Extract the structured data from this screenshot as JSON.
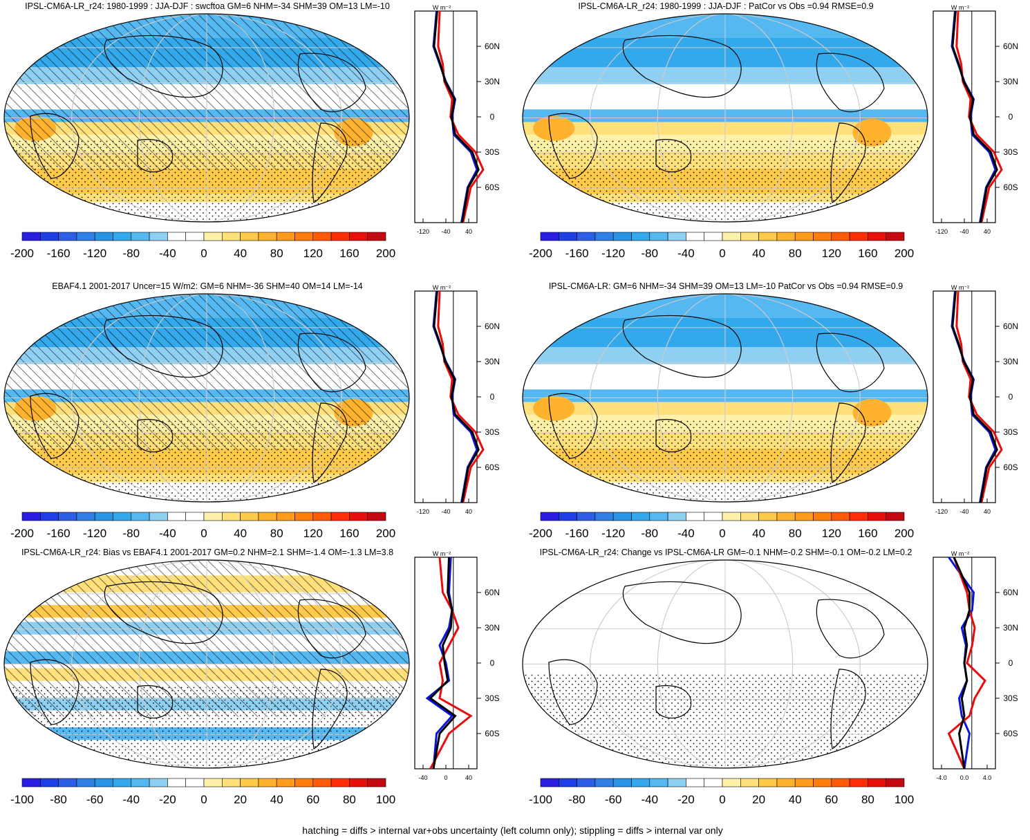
{
  "colors": {
    "scale": [
      "#2a1de0",
      "#1f3fe6",
      "#2c5fe6",
      "#2f7fe6",
      "#2a94e4",
      "#33a8ea",
      "#55b8f0",
      "#8fd0f2",
      "#ffffff",
      "#ffffff",
      "#fff2a8",
      "#ffe07a",
      "#ffc94a",
      "#ffb22e",
      "#ff9a1a",
      "#ff7d0d",
      "#ff5a08",
      "#ff2e06",
      "#e8100a",
      "#c40a10"
    ],
    "model_line": "#0a14e0",
    "obs_line": "#e80c0c",
    "mean_line": "#000000"
  },
  "panels": [
    {
      "title": "IPSL-CM6A-LR_r24: 1980-1999 : JJA-DJF : swcftoa GM=6 NHM=-34 SHM=39 OM=13 LM=-10",
      "cbar_labels": [
        "-200",
        "-160",
        "-120",
        "-80",
        "-40",
        "0",
        "40",
        "80",
        "120",
        "160",
        "200"
      ],
      "zonal_xticks": [
        "-120",
        "-40",
        "40"
      ],
      "zonal_unit": "W m⁻²",
      "lat_labels": [
        "60N",
        "30N",
        "0",
        "30S",
        "60S"
      ],
      "hatching": true
    },
    {
      "title": "IPSL-CM6A-LR_r24: 1980-1999 : JJA-DJF : PatCor vs Obs =0.94 RMSE=0.9",
      "cbar_labels": [
        "-200",
        "-160",
        "-120",
        "-80",
        "-40",
        "0",
        "40",
        "80",
        "120",
        "160",
        "200"
      ],
      "zonal_xticks": [
        "-120",
        "-40",
        "40"
      ],
      "zonal_unit": "W m⁻²",
      "lat_labels": [
        "60N",
        "30N",
        "0",
        "30S",
        "60S"
      ],
      "hatching": false
    },
    {
      "title": "EBAF4.1 2001-2017 Uncer=15 W/m2: GM=6 NHM=-36 SHM=40 OM=14 LM=-14",
      "cbar_labels": [
        "-200",
        "-160",
        "-120",
        "-80",
        "-40",
        "0",
        "40",
        "80",
        "120",
        "160",
        "200"
      ],
      "zonal_xticks": [
        "-120",
        "-40",
        "40"
      ],
      "zonal_unit": "W m⁻²",
      "lat_labels": [
        "60N",
        "30N",
        "0",
        "30S",
        "60S"
      ],
      "hatching": true
    },
    {
      "title": "IPSL-CM6A-LR: GM=6 NHM=-34 SHM=39 OM=13 LM=-10 PatCor vs Obs =0.94 RMSE=0.9",
      "cbar_labels": [
        "-200",
        "-160",
        "-120",
        "-80",
        "-40",
        "0",
        "40",
        "80",
        "120",
        "160",
        "200"
      ],
      "zonal_xticks": [
        "-120",
        "-40",
        "40"
      ],
      "zonal_unit": "W m⁻²",
      "lat_labels": [
        "60N",
        "30N",
        "0",
        "30S",
        "60S"
      ],
      "hatching": false
    },
    {
      "title": "IPSL-CM6A-LR_r24: Bias vs EBAF4.1 2001-2017 GM=0.2 NHM=2.1 SHM=-1.4 OM=-1.3 LM=3.8",
      "cbar_labels": [
        "-100",
        "-80",
        "-60",
        "-40",
        "-20",
        "0",
        "20",
        "40",
        "60",
        "80",
        "100"
      ],
      "zonal_xticks": [
        "-40",
        "0",
        "40"
      ],
      "zonal_unit": "W m⁻²",
      "lat_labels": [
        "60N",
        "30N",
        "0",
        "30S",
        "60S"
      ],
      "hatching": true
    },
    {
      "title": "IPSL-CM6A-LR_r24: Change vs IPSL-CM6A-LR GM=-0.1 NHM=-0.2 SHM=-0.1 OM=-0.2 LM=0.2",
      "cbar_labels": [
        "-100",
        "-80",
        "-60",
        "-40",
        "-20",
        "0",
        "20",
        "40",
        "60",
        "80",
        "100"
      ],
      "zonal_xticks": [
        "-4.0",
        "0.0",
        "4.0"
      ],
      "zonal_unit": "W m⁻²",
      "lat_labels": [
        "60N",
        "30N",
        "0",
        "30S",
        "60S"
      ],
      "hatching": false
    }
  ],
  "footnote": "hatching = diffs > internal var+obs uncertainty (left column only); stippling = diffs > internal var only",
  "chart_data": [
    {
      "type": "heatmap",
      "title": "IPSL-CM6A-LR_r24: 1980-1999 : JJA-DJF : swcftoa GM=6 NHM=-34 SHM=39 OM=13 LM=-10",
      "colorbar_range": [
        -200,
        200
      ],
      "zonal_lat": [
        -90,
        -60,
        -45,
        -30,
        -15,
        0,
        15,
        30,
        45,
        60,
        90
      ],
      "zonal_series": [
        {
          "values": [
            10,
            30,
            60,
            40,
            -15,
            -20,
            -10,
            -40,
            -60,
            -80,
            -70
          ]
        },
        {
          "values": [
            15,
            40,
            80,
            55,
            0,
            -25,
            -20,
            -45,
            -50,
            -65,
            -60
          ]
        },
        {
          "values": [
            12,
            32,
            65,
            45,
            -10,
            -22,
            -12,
            -42,
            -58,
            -78,
            -68
          ]
        }
      ]
    },
    {
      "type": "heatmap",
      "title": "IPSL-CM6A-LR_r24: 1980-1999 : JJA-DJF : PatCor vs Obs =0.94 RMSE=0.9",
      "colorbar_range": [
        -200,
        200
      ],
      "zonal_lat": [
        -90,
        -60,
        -45,
        -30,
        -15,
        0,
        15,
        30,
        45,
        60,
        90
      ],
      "zonal_series": [
        {
          "values": [
            10,
            30,
            60,
            40,
            -15,
            -20,
            -10,
            -40,
            -60,
            -80,
            -70
          ]
        },
        {
          "values": [
            15,
            40,
            80,
            55,
            0,
            -25,
            -20,
            -45,
            -50,
            -65,
            -60
          ]
        },
        {
          "values": [
            12,
            32,
            65,
            45,
            -10,
            -22,
            -12,
            -42,
            -58,
            -78,
            -68
          ]
        }
      ]
    },
    {
      "type": "heatmap",
      "title": "EBAF4.1 2001-2017 Uncer=15 W/m2: GM=6 NHM=-36 SHM=40 OM=14 LM=-14",
      "colorbar_range": [
        -200,
        200
      ],
      "zonal_lat": [
        -90,
        -60,
        -45,
        -30,
        -15,
        0,
        15,
        30,
        45,
        60,
        90
      ],
      "zonal_series": [
        {
          "values": [
            10,
            30,
            60,
            40,
            -15,
            -20,
            -10,
            -40,
            -60,
            -80,
            -70
          ]
        },
        {
          "values": [
            15,
            40,
            80,
            55,
            0,
            -25,
            -20,
            -45,
            -50,
            -65,
            -60
          ]
        },
        {
          "values": [
            12,
            32,
            65,
            45,
            -10,
            -22,
            -12,
            -42,
            -58,
            -78,
            -68
          ]
        }
      ]
    },
    {
      "type": "heatmap",
      "title": "IPSL-CM6A-LR: GM=6 NHM=-34 SHM=39 OM=13 LM=-10 PatCor vs Obs =0.94 RMSE=0.9",
      "colorbar_range": [
        -200,
        200
      ],
      "zonal_lat": [
        -90,
        -60,
        -45,
        -30,
        -15,
        0,
        15,
        30,
        45,
        60,
        90
      ],
      "zonal_series": [
        {
          "values": [
            10,
            30,
            60,
            40,
            -15,
            -20,
            -10,
            -40,
            -60,
            -80,
            -70
          ]
        },
        {
          "values": [
            15,
            40,
            80,
            55,
            0,
            -25,
            -20,
            -45,
            -50,
            -65,
            -60
          ]
        },
        {
          "values": [
            12,
            32,
            65,
            45,
            -10,
            -22,
            -12,
            -42,
            -58,
            -78,
            -68
          ]
        }
      ]
    },
    {
      "type": "heatmap",
      "title": "IPSL-CM6A-LR_r24: Bias vs EBAF4.1 2001-2017 GM=0.2 NHM=2.1 SHM=-1.4 OM=-1.3 LM=3.8",
      "colorbar_range": [
        -100,
        100
      ],
      "zonal_lat": [
        -90,
        -60,
        -45,
        -30,
        -15,
        0,
        15,
        30,
        45,
        60,
        90
      ],
      "zonal_series": [
        {
          "values": [
            -20,
            -15,
            10,
            -30,
            5,
            0,
            -10,
            5,
            10,
            5,
            8
          ]
        },
        {
          "values": [
            -25,
            5,
            40,
            -10,
            -5,
            -10,
            5,
            20,
            10,
            -5,
            -10
          ]
        },
        {
          "values": [
            -20,
            -10,
            15,
            -25,
            3,
            -2,
            -5,
            8,
            10,
            3,
            5
          ]
        }
      ]
    },
    {
      "type": "heatmap",
      "title": "IPSL-CM6A-LR_r24: Change vs IPSL-CM6A-LR GM=-0.1 NHM=-0.2 SHM=-0.1 OM=-0.2 LM=0.2",
      "colorbar_range": [
        -100,
        100
      ],
      "zonal_lat": [
        -90,
        -60,
        -45,
        -30,
        -15,
        0,
        15,
        30,
        45,
        60,
        90
      ],
      "zonal_series": [
        {
          "values": [
            0,
            1,
            -0.5,
            -1,
            0.5,
            0,
            0.3,
            -0.5,
            1.5,
            1.8,
            -3
          ]
        },
        {
          "values": [
            0,
            -3,
            1,
            2,
            4,
            0.5,
            1.5,
            2,
            1,
            0.5,
            -2
          ]
        },
        {
          "values": [
            0,
            -1,
            0,
            -0.5,
            0.5,
            0,
            0.5,
            0,
            1,
            1,
            -2
          ]
        }
      ]
    }
  ]
}
